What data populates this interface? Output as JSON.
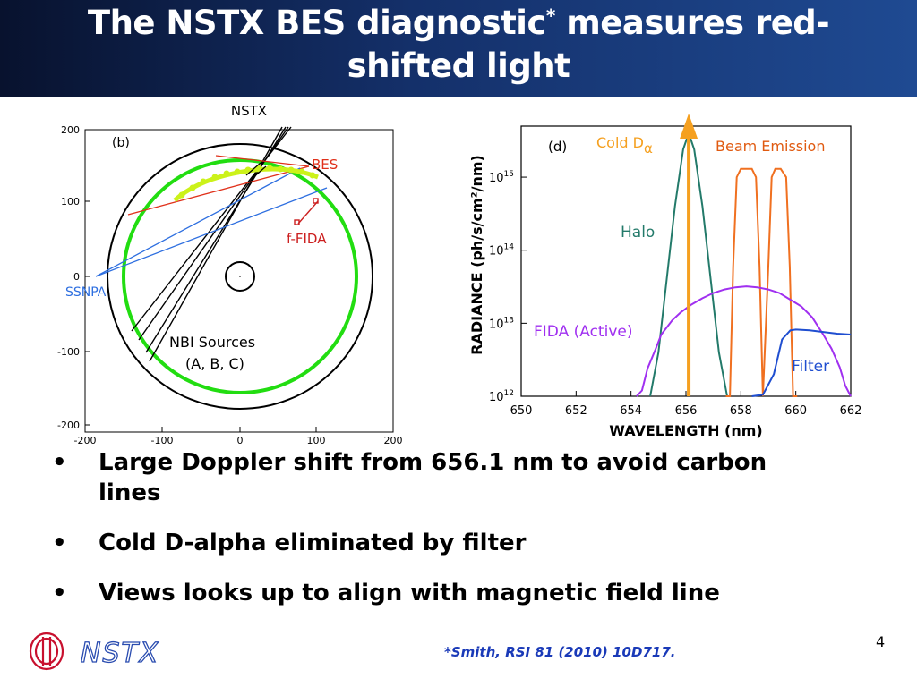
{
  "slide": {
    "title_line1_a": "The NSTX BES diagnostic",
    "title_star": "*",
    "title_line1_b": " measures red-",
    "title_line2": "shifted light",
    "page_number": "4",
    "reference": "*Smith, RSI 81 (2010) 10D717.",
    "logo_text": "NSTX",
    "colors": {
      "title_bg": "#14306a",
      "reference": "#1a3ab8"
    }
  },
  "bullets": [
    {
      "marker": "•",
      "line1": "Large Doppler shift from 656.1 nm to avoid carbon",
      "line2": "lines"
    },
    {
      "marker": "•",
      "text": "Cold D-alpha eliminated by filter"
    },
    {
      "marker": "•",
      "text": "Views looks up to align with magnetic field line"
    }
  ],
  "fig_left": {
    "panel": "(b)",
    "header": "NSTX",
    "labels": {
      "bes": "BES",
      "ffida": "f-FIDA",
      "ssnpa": "SSNPA",
      "nbi_line1": "NBI Sources",
      "nbi_line2": "(A, B, C)"
    },
    "xticks": [
      "-200",
      "-100",
      "0",
      "100",
      "200"
    ],
    "yticks": [
      "200",
      "100",
      "0",
      "-100",
      "-200"
    ],
    "colors": {
      "plasma": "#22dd11",
      "bes": "#e0301a",
      "ssnpa": "#2e6fe0",
      "ffida": "#cc2020",
      "nbi": "#000000"
    }
  },
  "chart_data": {
    "type": "line",
    "panel": "(d)",
    "xlabel": "WAVELENGTH (nm)",
    "ylabel": "RADIANCE (ph/s/cm²/nm)",
    "xlim": [
      650,
      662
    ],
    "ylim": [
      1000000000000.0,
      5000000000000000.0
    ],
    "yscale": "log",
    "xticks": [
      "650",
      "652",
      "654",
      "656",
      "658",
      "660",
      "662"
    ],
    "yticks": [
      {
        "base": "10",
        "exp": "15",
        "value": 1000000000000000.0
      },
      {
        "base": "10",
        "exp": "14",
        "value": 100000000000000.0
      },
      {
        "base": "10",
        "exp": "13",
        "value": 10000000000000.0
      },
      {
        "base": "10",
        "exp": "12",
        "value": 1000000000000.0
      }
    ],
    "labels": {
      "cold_d": "Cold D",
      "alpha": "α",
      "beam": "Beam Emission",
      "halo": "Halo",
      "fida": "FIDA (Active)",
      "filter": "Filter"
    },
    "series": [
      {
        "key": "halo",
        "color": "#237a6a",
        "x": [
          654.7,
          655.0,
          655.3,
          655.6,
          655.9,
          656.1,
          656.3,
          656.6,
          656.9,
          657.2,
          657.5
        ],
        "y": [
          1000000000000.0,
          4000000000000.0,
          40000000000000.0,
          400000000000000.0,
          2400000000000000.0,
          4000000000000000.0,
          2400000000000000.0,
          400000000000000.0,
          40000000000000.0,
          4000000000000.0,
          1000000000000.0
        ]
      },
      {
        "key": "beam",
        "color": "#f07020",
        "x": [
          657.45,
          657.6,
          657.72,
          657.85,
          658.0,
          658.2,
          658.4,
          658.55,
          658.68,
          658.8,
          659.0,
          659.12,
          659.25,
          659.45,
          659.65,
          659.78,
          659.9,
          660.05
        ],
        "y": [
          1000000000000.0,
          1000000000000.0,
          60000000000000.0,
          1000000000000000.0,
          1300000000000000.0,
          1300000000000000.0,
          1300000000000000.0,
          1000000000000000.0,
          60000000000000.0,
          1000000000000.0,
          60000000000000.0,
          1000000000000000.0,
          1300000000000000.0,
          1300000000000000.0,
          1000000000000000.0,
          60000000000000.0,
          1000000000000.0,
          1000000000000.0
        ]
      },
      {
        "key": "fida",
        "color": "#a030f0",
        "x": [
          654.2,
          654.4,
          654.6,
          654.9,
          655.1,
          655.5,
          655.8,
          656.2,
          656.6,
          657.0,
          657.4,
          657.8,
          658.2,
          658.6,
          659.0,
          659.4,
          659.8,
          660.2,
          660.6,
          661.0,
          661.3,
          661.6,
          661.8,
          662.0
        ],
        "y": [
          1000000000000.0,
          1200000000000.0,
          2400000000000.0,
          4500000000000.0,
          7000000000000.0,
          11000000000000.0,
          14000000000000.0,
          18000000000000.0,
          22000000000000.0,
          26000000000000.0,
          29000000000000.0,
          31000000000000.0,
          32000000000000.0,
          31000000000000.0,
          29000000000000.0,
          26000000000000.0,
          21000000000000.0,
          17000000000000.0,
          12000000000000.0,
          7000000000000.0,
          4500000000000.0,
          2500000000000.0,
          1400000000000.0,
          1000000000000.0
        ]
      },
      {
        "key": "filter",
        "color": "#1f4ed0",
        "x": [
          658.4,
          658.8,
          659.2,
          659.5,
          659.8,
          660.0,
          660.5,
          661.0,
          661.5,
          662.0
        ],
        "y": [
          1000000000000.0,
          1050000000000.0,
          2000000000000.0,
          6000000000000.0,
          8000000000000.0,
          8200000000000.0,
          8000000000000.0,
          7600000000000.0,
          7200000000000.0,
          7000000000000.0
        ]
      }
    ],
    "cold_d_alpha": {
      "x": 656.1,
      "color": "#f5a020"
    }
  }
}
